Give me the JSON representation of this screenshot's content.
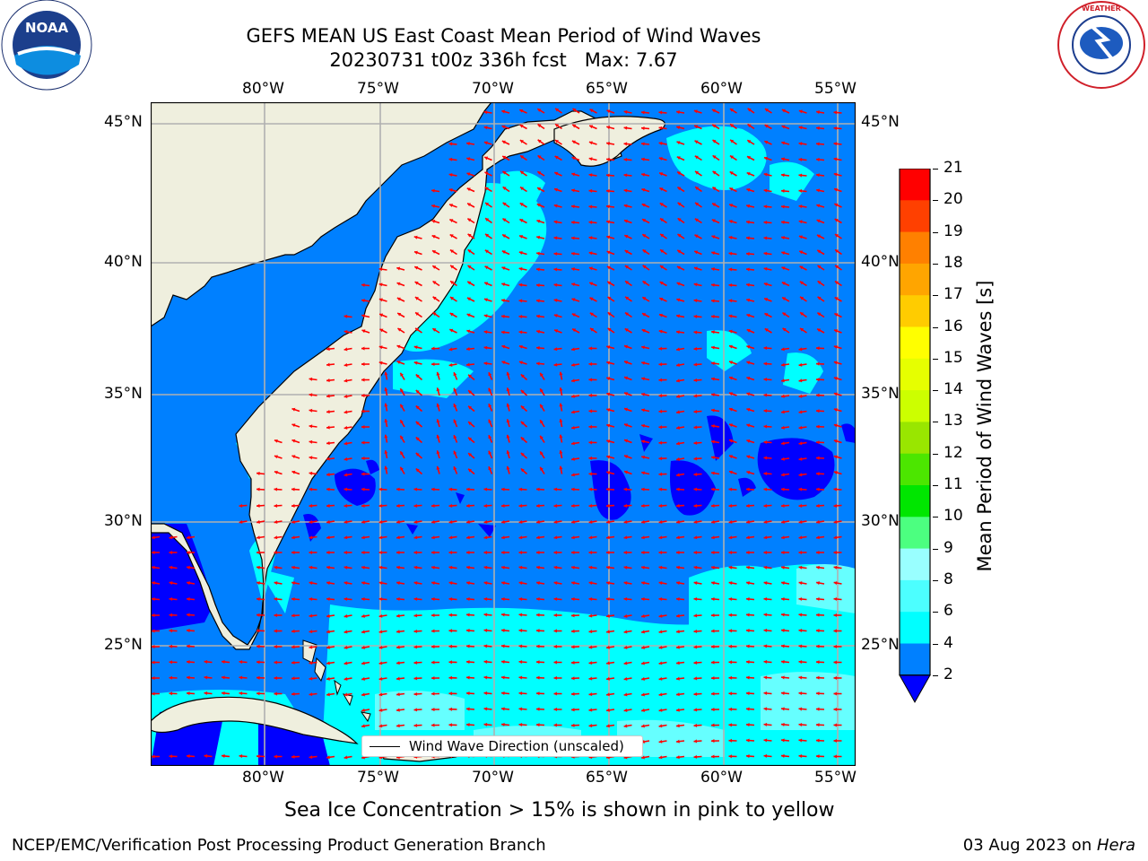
{
  "header": {
    "title_line1": "GEFS MEAN US East Coast Mean Period of Wind Waves",
    "title_line2": "20230731 t00z 336h fcst   Max: 7.67"
  },
  "logos": {
    "left_icon": "noaa-logo",
    "right_icon": "nws-logo",
    "left_text": "NATIONAL OCEANIC AND ATMOSPHERIC ADMINISTRATION · U.S. DEPARTMENT OF COMMERCE",
    "right_text": "NATIONAL WEATHER SERVICE"
  },
  "map": {
    "lon_labels": [
      "80°W",
      "75°W",
      "70°W",
      "65°W",
      "60°W",
      "55°W"
    ],
    "lat_labels": [
      "45°N",
      "40°N",
      "35°N",
      "30°N",
      "25°N"
    ],
    "legend_label": "Wind Wave Direction (unscaled)",
    "colors": {
      "land": "#efefde",
      "shallow": "#0080ff",
      "mid": "#00ffff",
      "light": "#66ffff",
      "deep": "#0000ff",
      "arrow": "#ff0000",
      "grid": "#b0b0b0"
    }
  },
  "colorbar": {
    "label": "Mean Period of Wind Waves [s]",
    "ticks": [
      "2",
      "4",
      "6",
      "8",
      "9",
      "10",
      "11",
      "12",
      "13",
      "14",
      "15",
      "16",
      "17",
      "18",
      "19",
      "20",
      "21"
    ],
    "colors": [
      "#0080ff",
      "#00ffff",
      "#4cffff",
      "#99ffff",
      "#4cff80",
      "#00e600",
      "#4ce600",
      "#99e600",
      "#ccff00",
      "#e6ff00",
      "#ffff00",
      "#ffcc00",
      "#ffa500",
      "#ff8000",
      "#ff4000",
      "#ff0000"
    ],
    "under_color": "#0000ff"
  },
  "note": "Sea Ice Concentration > 15% is shown in pink to yellow",
  "footer": {
    "left": "NCEP/EMC/Verification Post Processing Product Generation Branch",
    "date": "03 Aug 2023 on ",
    "machine": "Hera"
  }
}
